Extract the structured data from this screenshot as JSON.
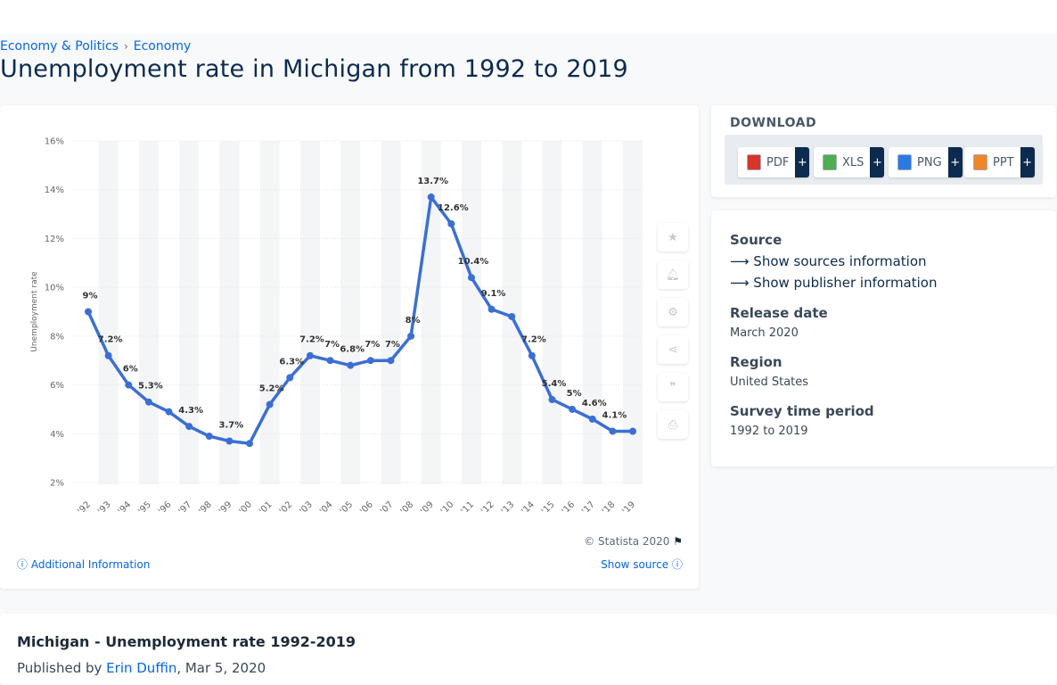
{
  "breadcrumb": [
    "Economy & Politics",
    "Economy"
  ],
  "page_title": "Unemployment rate in Michigan from 1992 to 2019",
  "chart_data": {
    "type": "line",
    "ylabel": "Unemployment rate",
    "xlabel": "",
    "ylim": [
      2,
      16
    ],
    "yticks": [
      2,
      4,
      6,
      8,
      10,
      12,
      14,
      16
    ],
    "ytick_labels": [
      "2%",
      "4%",
      "6%",
      "8%",
      "10%",
      "12%",
      "14%",
      "16%"
    ],
    "categories": [
      "'92",
      "'93",
      "'94",
      "'95",
      "'96",
      "'97",
      "'98",
      "'99",
      "'00",
      "'01",
      "'02",
      "'03",
      "'04",
      "'05",
      "'06",
      "'07",
      "'08",
      "'09",
      "'10",
      "'11",
      "'12",
      "'13",
      "'14",
      "'15",
      "'16",
      "'17",
      "'18",
      "'19"
    ],
    "values": [
      9,
      7.2,
      6,
      5.3,
      4.9,
      4.3,
      3.9,
      3.7,
      3.6,
      5.2,
      6.3,
      7.2,
      7,
      6.8,
      7,
      7,
      8,
      13.7,
      12.6,
      10.4,
      9.1,
      8.8,
      7.2,
      5.4,
      5,
      4.6,
      4.1,
      4.1
    ],
    "data_labels": [
      "9%",
      "7.2%",
      "6%",
      "5.3%",
      "",
      "4.3%",
      "",
      "3.7%",
      "",
      "5.2%",
      "6.3%",
      "7.2%",
      "7%",
      "6.8%",
      "7%",
      "7%",
      "8%",
      "13.7%",
      "12.6%",
      "10.4%",
      "9.1%",
      "",
      "7.2%",
      "5.4%",
      "5%",
      "4.6%",
      "4.1%",
      ""
    ],
    "grid": true,
    "line_color": "#3b6fd4"
  },
  "chart_footer": {
    "copyright": "© Statista 2020",
    "additional_info": "Additional Information",
    "show_source": "Show source"
  },
  "download": {
    "title": "DOWNLOAD",
    "buttons": [
      {
        "label": "PDF",
        "icon": "pdf-icon",
        "color": "#d9342b"
      },
      {
        "label": "XLS",
        "icon": "xls-icon",
        "color": "#4caf50"
      },
      {
        "label": "PNG",
        "icon": "png-icon",
        "color": "#2a7ae2"
      },
      {
        "label": "PPT",
        "icon": "ppt-icon",
        "color": "#f0862a"
      }
    ],
    "plus": "+"
  },
  "info": {
    "source_label": "Source",
    "sources_link": "Show sources information",
    "publisher_link": "Show publisher information",
    "release_label": "Release date",
    "release_value": "March 2020",
    "region_label": "Region",
    "region_value": "United States",
    "period_label": "Survey time period",
    "period_value": "1992 to 2019"
  },
  "bottom": {
    "title": "Michigan - Unemployment rate 1992-2019",
    "published_by": "Published by",
    "author": "Erin Duffin",
    "date": ", Mar 5, 2020"
  }
}
